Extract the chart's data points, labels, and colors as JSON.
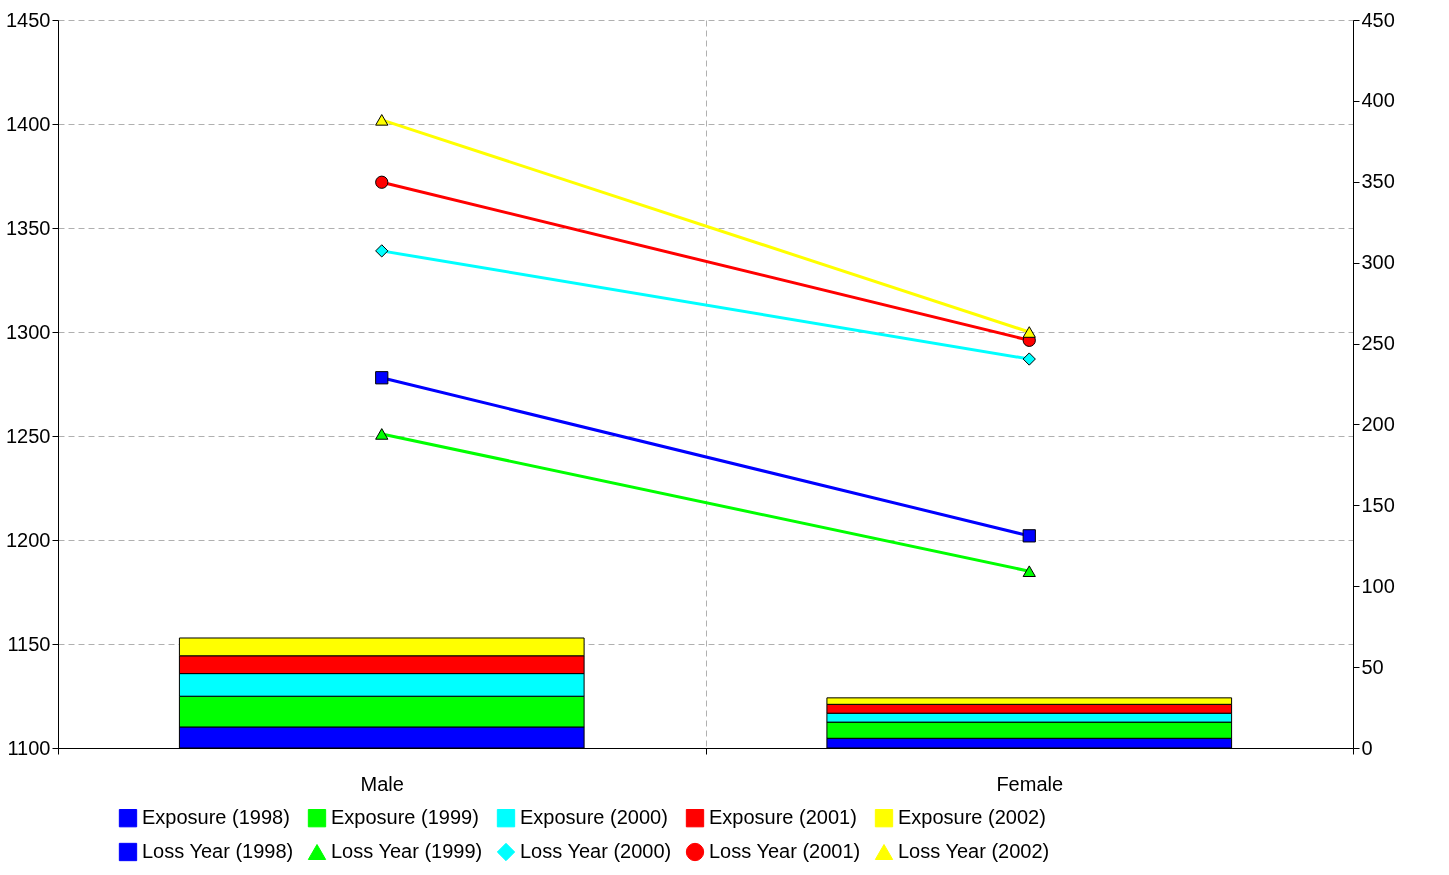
{
  "chart_data": {
    "type": "bar",
    "categories": [
      "Male",
      "Female"
    ],
    "stacked": true,
    "ylim": [
      1100,
      1450
    ],
    "yticks": [
      1100,
      1150,
      1200,
      1250,
      1300,
      1350,
      1400,
      1450
    ],
    "y2lim": [
      0,
      450
    ],
    "y2ticks": [
      0,
      50,
      100,
      150,
      200,
      250,
      300,
      350,
      400,
      450
    ],
    "grid": true,
    "legend": "bottom",
    "series": [
      {
        "name": "Exposure (1998)",
        "axis": "y2",
        "color": "#0000ff",
        "values": [
          13,
          6
        ]
      },
      {
        "name": "Exposure (1999)",
        "axis": "y2",
        "color": "#00ff00",
        "values": [
          19,
          10
        ]
      },
      {
        "name": "Exposure (2000)",
        "axis": "y2",
        "color": "#00ffff",
        "values": [
          14,
          5.5
        ]
      },
      {
        "name": "Exposure (2001)",
        "axis": "y2",
        "color": "#ff0000",
        "values": [
          11,
          5.5
        ]
      },
      {
        "name": "Exposure (2002)",
        "axis": "y2",
        "color": "#ffff00",
        "values": [
          11,
          4
        ]
      },
      {
        "name": "Loss Year (1998)",
        "type": "line",
        "axis": "y",
        "marker": "square",
        "color": "#0000ff",
        "values": [
          1278,
          1202
        ]
      },
      {
        "name": "Loss Year (1999)",
        "type": "line",
        "axis": "y",
        "marker": "triangle",
        "color": "#00ff00",
        "values": [
          1251,
          1185
        ]
      },
      {
        "name": "Loss Year (2000)",
        "type": "line",
        "axis": "y",
        "marker": "diamond",
        "color": "#00ffff",
        "values": [
          1339,
          1287
        ]
      },
      {
        "name": "Loss Year (2001)",
        "type": "line",
        "axis": "y",
        "marker": "circle",
        "color": "#ff0000",
        "values": [
          1372,
          1296
        ]
      },
      {
        "name": "Loss Year (2002)",
        "type": "line",
        "axis": "y",
        "marker": "triangle",
        "color": "#ffff00",
        "values": [
          1402,
          1300
        ]
      }
    ]
  }
}
